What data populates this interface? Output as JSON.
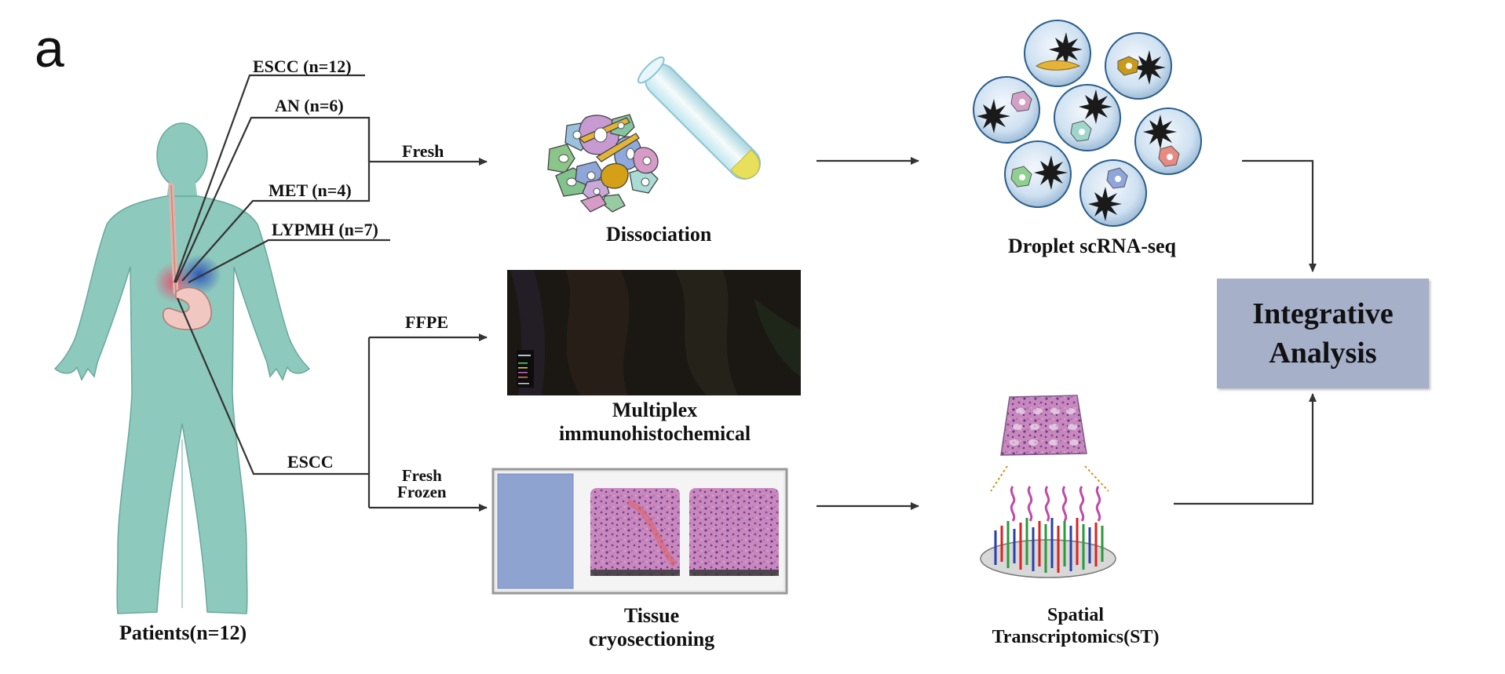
{
  "panel_letter": "a",
  "patients": {
    "label": "Patients(n=12)",
    "groups": [
      "ESCC (n=12)",
      "AN (n=6)",
      "MET (n=4)",
      "LYPMH (n=7)"
    ],
    "escc_label": "ESCC"
  },
  "paths": {
    "fresh": "Fresh",
    "ffpe": "FFPE",
    "fresh_frozen": [
      "Fresh",
      "Frozen"
    ]
  },
  "steps": {
    "dissociation": "Dissociation",
    "droplet": "Droplet scRNA-seq",
    "multiplex": [
      "Multiplex",
      "immunohistochemical"
    ],
    "tissue": [
      "Tissue",
      "cryosectioning"
    ],
    "spatial": [
      "Spatial",
      "Transcriptomics(ST)"
    ]
  },
  "integrative": [
    "Integrative",
    "Analysis"
  ],
  "colors": {
    "body": "#8ec9bd",
    "line": "#333333",
    "box": "#a6b0c9",
    "droplet": "#c9def0",
    "he": "#b46aa8"
  }
}
